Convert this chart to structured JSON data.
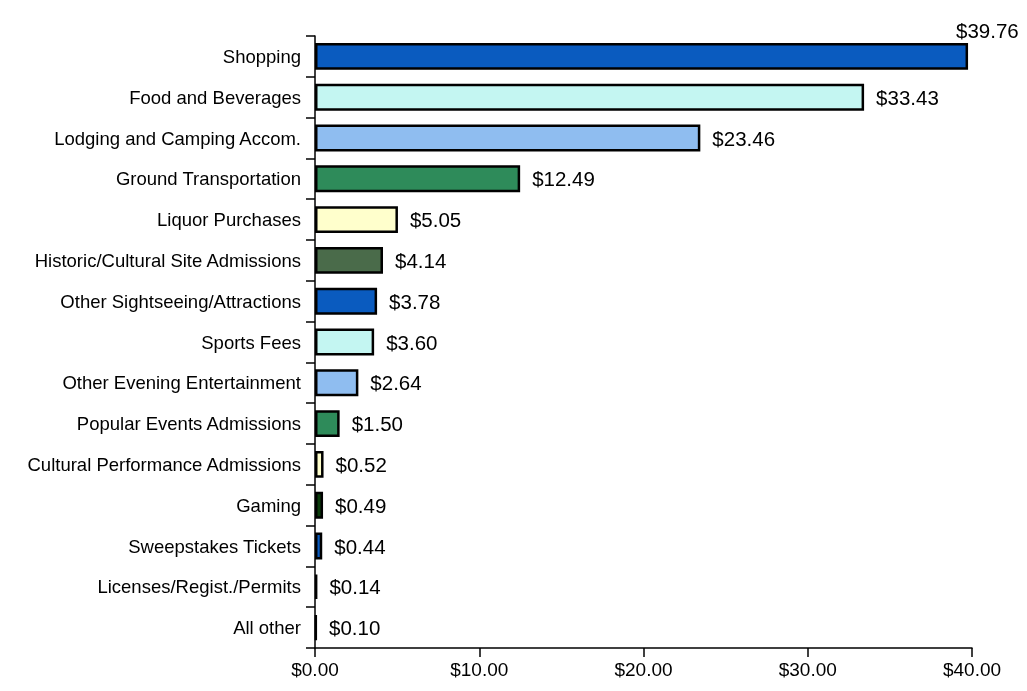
{
  "chart_data": {
    "type": "bar",
    "orientation": "horizontal",
    "categories": [
      "Shopping",
      "Food and Beverages",
      "Lodging and Camping Accom.",
      "Ground Transportation",
      "Liquor Purchases",
      "Historic/Cultural Site Admissions",
      "Other Sightseeing/Attractions",
      "Sports Fees",
      "Other Evening Entertainment",
      "Popular Events Admissions",
      "Cultural Performance Admissions",
      "Gaming",
      "Sweepstakes Tickets",
      "Licenses/Regist./Permits",
      "All other"
    ],
    "values": [
      39.76,
      33.43,
      23.46,
      12.49,
      5.05,
      4.14,
      3.78,
      3.6,
      2.64,
      1.5,
      0.52,
      0.49,
      0.44,
      0.14,
      0.1
    ],
    "colors": [
      "#0a5bbf",
      "#c4f6f2",
      "#8fbdf0",
      "#2e8b5a",
      "#ffffcc",
      "#4a6b4a",
      "#0a5bbf",
      "#c4f6f2",
      "#8fbdf0",
      "#2e8b5a",
      "#ffffcc",
      "#0b3d0b",
      "#0a5bbf",
      "#000000",
      "#000000"
    ],
    "value_labels": [
      "$39.76",
      "$33.43",
      "$23.46",
      "$12.49",
      "$5.05",
      "$4.14",
      "$3.78",
      "$3.60",
      "$2.64",
      "$1.50",
      "$0.52",
      "$0.49",
      "$0.44",
      "$0.14",
      "$0.10"
    ],
    "xlim": [
      0,
      40
    ],
    "xticks": [
      {
        "value": 0,
        "label": "$0.00"
      },
      {
        "value": 10,
        "label": "$10.00"
      },
      {
        "value": 20,
        "label": "$20.00"
      },
      {
        "value": 30,
        "label": "$30.00"
      },
      {
        "value": 40,
        "label": "$40.00"
      }
    ]
  }
}
